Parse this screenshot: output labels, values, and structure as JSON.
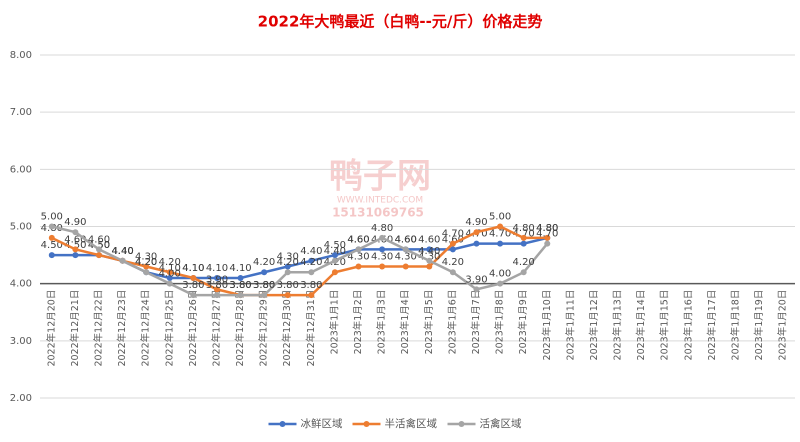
{
  "chart_data": {
    "type": "line",
    "title": "2022年大鸭最近（白鸭--元/斤）价格走势",
    "categories": [
      "2022年12月20日",
      "2022年12月21日",
      "2022年12月22日",
      "2022年12月23日",
      "2022年12月24日",
      "2022年12月25日",
      "2022年12月26日",
      "2022年12月27日",
      "2022年12月28日",
      "2022年12月29日",
      "2022年12月30日",
      "2022年12月31日",
      "2023年1月1日",
      "2023年1月2日",
      "2023年1月3日",
      "2023年1月4日",
      "2023年1月5日",
      "2023年1月6日",
      "2023年1月7日",
      "2023年1月8日",
      "2023年1月9日",
      "2023年1月10日",
      "2023年1月11日",
      "2023年1月12日",
      "2023年1月13日",
      "2023年1月14日",
      "2023年1月15日",
      "2023年1月16日",
      "2023年1月17日",
      "2023年1月18日",
      "2023年1月19日",
      "2023年1月20日"
    ],
    "series": [
      {
        "name": "冰鲜区域",
        "color": "#4472c4",
        "values": [
          4.5,
          4.5,
          4.5,
          4.4,
          4.2,
          4.1,
          4.1,
          4.1,
          4.1,
          4.2,
          4.3,
          4.4,
          4.5,
          4.6,
          4.6,
          4.6,
          4.6,
          4.6,
          4.7,
          4.7,
          4.7,
          4.8,
          null,
          null,
          null,
          null,
          null,
          null,
          null,
          null,
          null,
          null
        ],
        "value_labels": [
          "4.50",
          "4.50",
          "4.50",
          "4.40",
          "4.20",
          "4.10",
          "4.10",
          "4.10",
          "4.10",
          "4.20",
          "4.30",
          "4.40",
          "4.50",
          "4.60",
          "4.60",
          "4.60",
          "4.60",
          "4.60",
          "4.70",
          "4.70",
          "4.70",
          "4.80",
          null,
          null,
          null,
          null,
          null,
          null,
          null,
          null,
          null,
          null
        ]
      },
      {
        "name": "半活禽区域",
        "color": "#ed7d31",
        "values": [
          4.8,
          4.6,
          4.5,
          4.4,
          4.3,
          4.2,
          4.1,
          3.9,
          3.8,
          3.8,
          3.8,
          3.8,
          4.2,
          4.3,
          4.3,
          4.3,
          4.3,
          4.7,
          4.9,
          5.0,
          4.8,
          4.8,
          null,
          null,
          null,
          null,
          null,
          null,
          null,
          null,
          null,
          null
        ],
        "value_labels": [
          "4.80",
          "4.60",
          "4.50",
          "4.40",
          "4.30",
          "4.20",
          "4.10",
          "3.90",
          "3.80",
          "3.80",
          "3.80",
          "3.80",
          "4.20",
          "4.30",
          "4.30",
          "4.30",
          "4.30",
          "4.70",
          "4.90",
          "5.00",
          "4.80",
          "4.80",
          null,
          null,
          null,
          null,
          null,
          null,
          null,
          null,
          null,
          null
        ]
      },
      {
        "name": "活禽区域",
        "color": "#a5a5a5",
        "values": [
          5.0,
          4.9,
          4.6,
          4.4,
          4.2,
          4.0,
          3.8,
          3.8,
          3.8,
          3.8,
          4.2,
          4.2,
          4.4,
          4.6,
          4.8,
          4.6,
          4.4,
          4.2,
          3.9,
          4.0,
          4.2,
          4.7,
          null,
          null,
          null,
          null,
          null,
          null,
          null,
          null,
          null,
          null
        ],
        "value_labels": [
          "5.00",
          "4.90",
          "4.60",
          "4.40",
          "4.20",
          "4.00",
          "3.80",
          "3.80",
          "3.80",
          "3.80",
          "4.20",
          "4.20",
          "4.40",
          "4.60",
          "4.80",
          "4.60",
          "4.40",
          "4.20",
          "3.90",
          "4.00",
          "4.20",
          "4.70",
          null,
          null,
          null,
          null,
          null,
          null,
          null,
          null,
          null,
          null
        ]
      }
    ],
    "ylim": [
      2,
      8
    ],
    "yticks": [
      {
        "value": 2,
        "label": "2.00"
      },
      {
        "value": 3,
        "label": "3.00"
      },
      {
        "value": 4,
        "label": "4.00"
      },
      {
        "value": 5,
        "label": "5.00"
      },
      {
        "value": 6,
        "label": "6.00"
      },
      {
        "value": 7,
        "label": "7.00"
      },
      {
        "value": 8,
        "label": "8.00"
      }
    ],
    "x_axis_at": 4,
    "grid": true,
    "legend": "bottom",
    "watermark": [
      "鸭子网",
      "WWW.INTEDC.COM",
      "15131069765"
    ]
  }
}
